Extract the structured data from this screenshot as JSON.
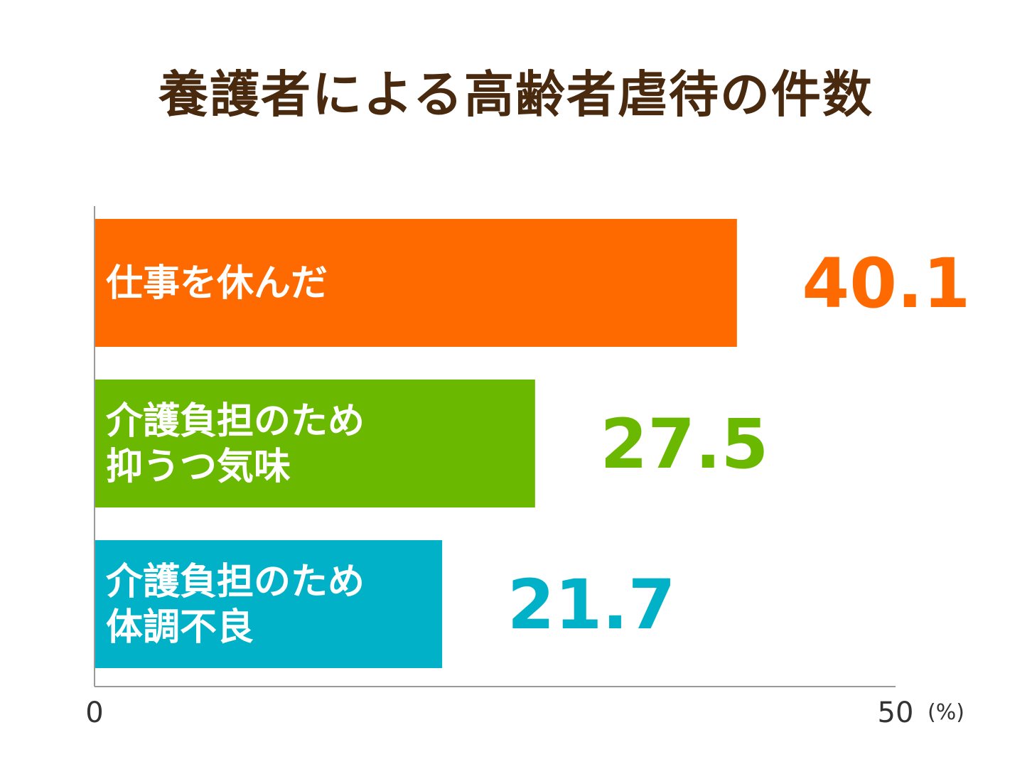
{
  "chart_data": {
    "type": "bar",
    "orientation": "horizontal",
    "title": "養護者による高齢者虐待の件数",
    "categories": [
      [
        "仕事を休んだ"
      ],
      [
        "介護負担のため",
        "抑うつ気味"
      ],
      [
        "介護負担のため",
        "体調不良"
      ]
    ],
    "values": [
      40.1,
      27.5,
      21.7
    ],
    "value_labels": [
      "40.1",
      "27.5",
      "21.7"
    ],
    "colors": [
      "#ff6a00",
      "#6ab800",
      "#00b1c7"
    ],
    "xlim": [
      0,
      50
    ],
    "x_ticks": [
      "0",
      "50"
    ],
    "unit": "(%)",
    "grid": false
  }
}
